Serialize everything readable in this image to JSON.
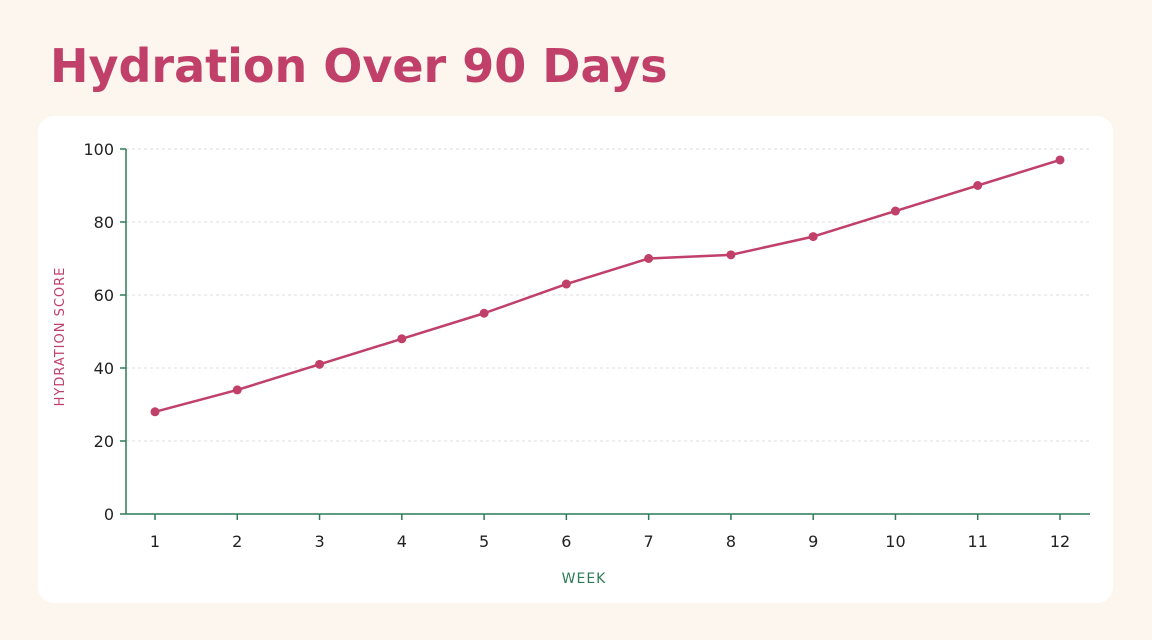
{
  "page": {
    "title": "Hydration Over 90 Days"
  },
  "colors": {
    "background": "#fcf6ef",
    "card": "#ffffff",
    "accent": "#c0406a",
    "line": "#c0406a",
    "axis": "#2e7b57",
    "gridline": "#dcdcdc",
    "tick_text": "#222222"
  },
  "chart_data": {
    "type": "line",
    "title": "Hydration Over 90 Days",
    "xlabel": "WEEK",
    "ylabel": "HYDRATION SCORE",
    "categories": [
      "1",
      "2",
      "3",
      "4",
      "5",
      "6",
      "7",
      "8",
      "9",
      "10",
      "11",
      "12"
    ],
    "series": [
      {
        "values": [
          28,
          34,
          41,
          48,
          55,
          63,
          70,
          71,
          76,
          83,
          90,
          97
        ]
      }
    ],
    "ylim": [
      0,
      100
    ],
    "yticks": [
      0,
      20,
      40,
      60,
      80,
      100
    ],
    "grid": "horizontal dashed",
    "legend": "none",
    "markers": true
  }
}
